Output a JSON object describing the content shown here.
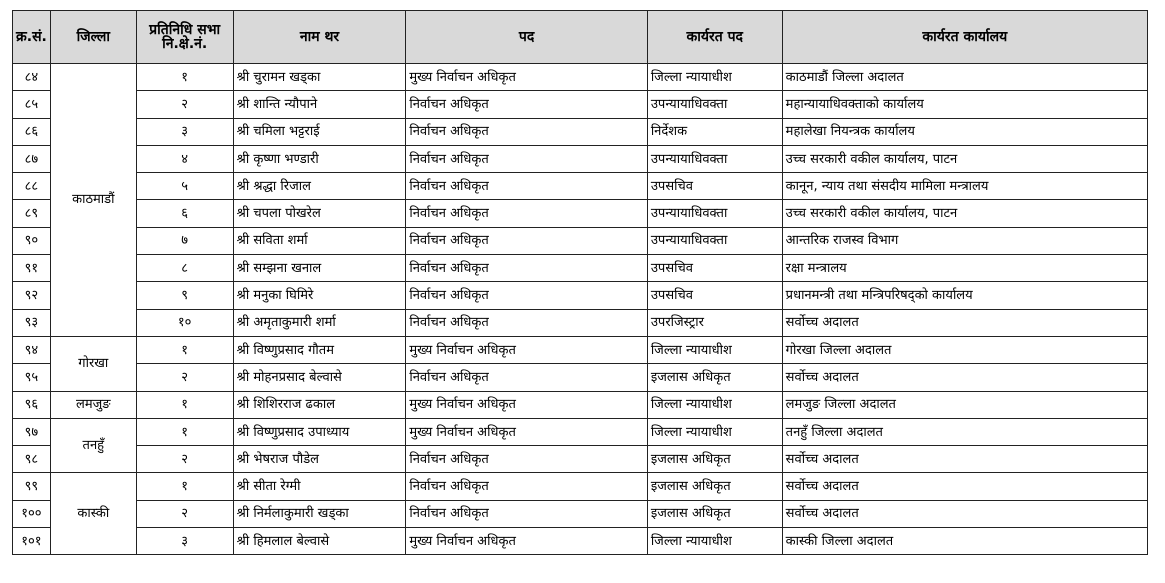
{
  "headers": [
    "क्र.सं.",
    "जिल्ला",
    "प्रतिनिधि सभा नि.क्षे.नं.",
    "नाम थर",
    "पद",
    "कार्यरत पद",
    "कार्यरत कार्यालय"
  ],
  "rows": [
    {
      "sn": "८४",
      "district": "काठमाडौं",
      "const": "१",
      "name": "श्री चुरामन खड्का",
      "role": "मुख्य निर्वाचन अधिकृत",
      "post": "जिल्ला न्यायाधीश",
      "office": "काठमाडौं जिल्ला अदालत"
    },
    {
      "sn": "८५",
      "const": "२",
      "name": "श्री शान्ति न्यौपाने",
      "role": "निर्वाचन अधिकृत",
      "post": "उपन्यायाधिवक्ता",
      "office": "महान्यायाधिवक्ताको कार्यालय"
    },
    {
      "sn": "८६",
      "const": "३",
      "name": "श्री चमिला भट्टराई",
      "role": "निर्वाचन अधिकृत",
      "post": "निर्देशक",
      "office": "महालेखा नियन्त्रक कार्यालय"
    },
    {
      "sn": "८७",
      "const": "४",
      "name": "श्री कृष्णा भण्डारी",
      "role": "निर्वाचन अधिकृत",
      "post": "उपन्यायाधिवक्ता",
      "office": "उच्च सरकारी वकील कार्यालय, पाटन"
    },
    {
      "sn": "८८",
      "const": "५",
      "name": "श्री श्रद्धा रिजाल",
      "role": "निर्वाचन अधिकृत",
      "post": "उपसचिव",
      "office": "कानून, न्याय तथा संसदीय मामिला मन्त्रालय"
    },
    {
      "sn": "८९",
      "const": "६",
      "name": "श्री चपला पोखरेल",
      "role": "निर्वाचन अधिकृत",
      "post": "उपन्यायाधिवक्ता",
      "office": "उच्च सरकारी वकील कार्यालय, पाटन"
    },
    {
      "sn": "९०",
      "const": "७",
      "name": "श्री सविता शर्मा",
      "role": "निर्वाचन अधिकृत",
      "post": "उपन्यायाधिवक्ता",
      "office": "आन्तरिक राजस्व विभाग"
    },
    {
      "sn": "९१",
      "const": "८",
      "name": "श्री सम्झना खनाल",
      "role": "निर्वाचन अधिकृत",
      "post": "उपसचिव",
      "office": "रक्षा मन्त्रालय"
    },
    {
      "sn": "९२",
      "const": "९",
      "name": "श्री मनुका घिमिरे",
      "role": "निर्वाचन अधिकृत",
      "post": "उपसचिव",
      "office": "प्रधानमन्त्री तथा मन्त्रिपरिषद्को कार्यालय"
    },
    {
      "sn": "९३",
      "const": "१०",
      "name": "श्री अमृताकुमारी शर्मा",
      "role": "निर्वाचन अधिकृत",
      "post": "उपरजिस्ट्रार",
      "office": "सर्वोच्च अदालत"
    },
    {
      "sn": "९४",
      "district": "गोरखा",
      "const": "१",
      "name": "श्री विष्णुप्रसाद गौतम",
      "role": "मुख्य निर्वाचन अधिकृत",
      "post": "जिल्ला न्यायाधीश",
      "office": "गोरखा जिल्ला अदालत"
    },
    {
      "sn": "९५",
      "const": "२",
      "name": "श्री मोहनप्रसाद बेल्वासे",
      "role": "निर्वाचन अधिकृत",
      "post": "इजलास अधिकृत",
      "office": "सर्वोच्च अदालत"
    },
    {
      "sn": "९६",
      "district": "लमजुङ",
      "const": "१",
      "name": "श्री शिशिरराज ढकाल",
      "role": "मुख्य निर्वाचन अधिकृत",
      "post": "जिल्ला न्यायाधीश",
      "office": "लमजुङ जिल्ला अदालत"
    },
    {
      "sn": "९७",
      "district": "तनहुँ",
      "const": "१",
      "name": "श्री विष्णुप्रसाद उपाध्याय",
      "role": "मुख्य निर्वाचन अधिकृत",
      "post": "जिल्ला न्यायाधीश",
      "office": "तनहुँ जिल्ला अदालत"
    },
    {
      "sn": "९८",
      "const": "२",
      "name": "श्री भेषराज पौडेल",
      "role": "निर्वाचन अधिकृत",
      "post": "इजलास अधिकृत",
      "office": "सर्वोच्च अदालत"
    },
    {
      "sn": "९९",
      "district": "कास्की",
      "const": "१",
      "name": "श्री सीता रेग्मी",
      "role": "निर्वाचन अधिकृत",
      "post": "इजलास अधिकृत",
      "office": "सर्वोच्च अदालत"
    },
    {
      "sn": "१००",
      "const": "२",
      "name": "श्री निर्मलाकुमारी खड्का",
      "role": "निर्वाचन अधिकृत",
      "post": "इजलास अधिकृत",
      "office": "सर्वोच्च अदालत"
    },
    {
      "sn": "१०१",
      "const": "३",
      "name": "श्री हिमलाल बेल्वासे",
      "role": "मुख्य निर्वाचन अधिकृत",
      "post": "जिल्ला न्यायाधीश",
      "office": "कास्की जिल्ला अदालत"
    }
  ]
}
